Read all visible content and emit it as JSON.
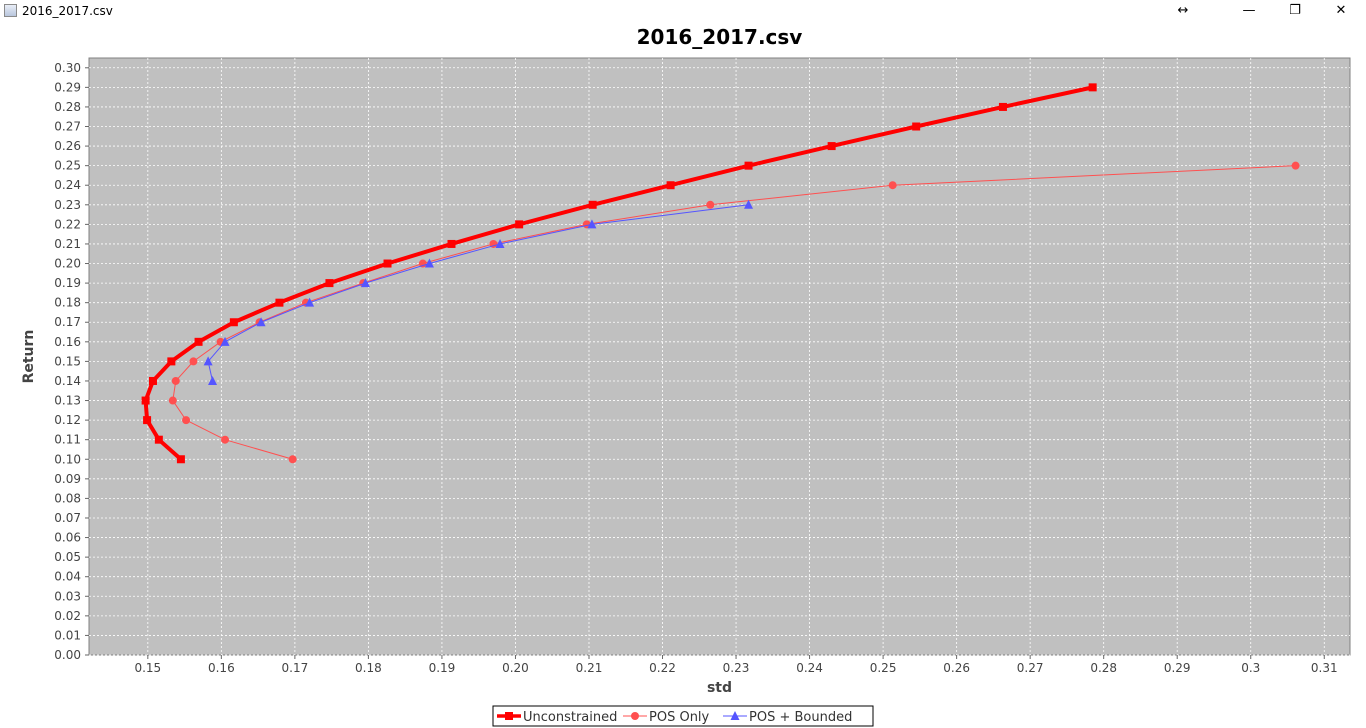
{
  "window": {
    "title": "2016_2017.csv",
    "buttons": {
      "resize": "↔",
      "minimize": "—",
      "maximize": "❐",
      "close": "✕"
    }
  },
  "chart_data": {
    "type": "line",
    "title": "2016_2017.csv",
    "xlabel": "std",
    "ylabel": "Return",
    "xlim": [
      0.142,
      0.3135
    ],
    "ylim": [
      0.0,
      0.305
    ],
    "xticks": [
      0.15,
      0.16,
      0.17,
      0.18,
      0.19,
      0.2,
      0.21,
      0.22,
      0.23,
      0.24,
      0.25,
      0.26,
      0.27,
      0.28,
      0.29,
      0.3,
      0.31
    ],
    "yticks": [
      0.0,
      0.01,
      0.02,
      0.03,
      0.04,
      0.05,
      0.06,
      0.07,
      0.08,
      0.09,
      0.1,
      0.11,
      0.12,
      0.13,
      0.14,
      0.15,
      0.16,
      0.17,
      0.18,
      0.19,
      0.2,
      0.21,
      0.22,
      0.23,
      0.24,
      0.25,
      0.26,
      0.27,
      0.28,
      0.29,
      0.3
    ],
    "grid": true,
    "legend": "bottom-center",
    "plot_background": "#c0c0c0",
    "series": [
      {
        "name": "Unconstrained",
        "color": "#ff0000",
        "marker": "square",
        "x": [
          0.1545,
          0.1515,
          0.1499,
          0.1497,
          0.1507,
          0.1532,
          0.1569,
          0.1617,
          0.1679,
          0.1747,
          0.1826,
          0.1913,
          0.2005,
          0.2105,
          0.2211,
          0.2317,
          0.243,
          0.2545,
          0.2663,
          0.2785
        ],
        "y": [
          0.1,
          0.11,
          0.12,
          0.13,
          0.14,
          0.15,
          0.16,
          0.17,
          0.18,
          0.19,
          0.2,
          0.21,
          0.22,
          0.23,
          0.24,
          0.25,
          0.26,
          0.27,
          0.28,
          0.29
        ]
      },
      {
        "name": "POS Only",
        "color": "#ff5050",
        "marker": "circle",
        "x": [
          0.1697,
          0.1605,
          0.1552,
          0.1534,
          0.1538,
          0.1562,
          0.1599,
          0.1652,
          0.1715,
          0.1793,
          0.1874,
          0.197,
          0.2097,
          0.2265,
          0.2513,
          0.3061
        ],
        "y": [
          0.1,
          0.11,
          0.12,
          0.13,
          0.14,
          0.15,
          0.16,
          0.17,
          0.18,
          0.19,
          0.2,
          0.21,
          0.22,
          0.23,
          0.24,
          0.25
        ]
      },
      {
        "name": "POS + Bounded",
        "color": "#5555ff",
        "marker": "triangle",
        "x": [
          0.1588,
          0.1582,
          0.1605,
          0.1654,
          0.172,
          0.1796,
          0.1883,
          0.1979,
          0.2104,
          0.2317
        ],
        "y": [
          0.14,
          0.15,
          0.16,
          0.17,
          0.18,
          0.19,
          0.2,
          0.21,
          0.22,
          0.23
        ]
      }
    ]
  }
}
